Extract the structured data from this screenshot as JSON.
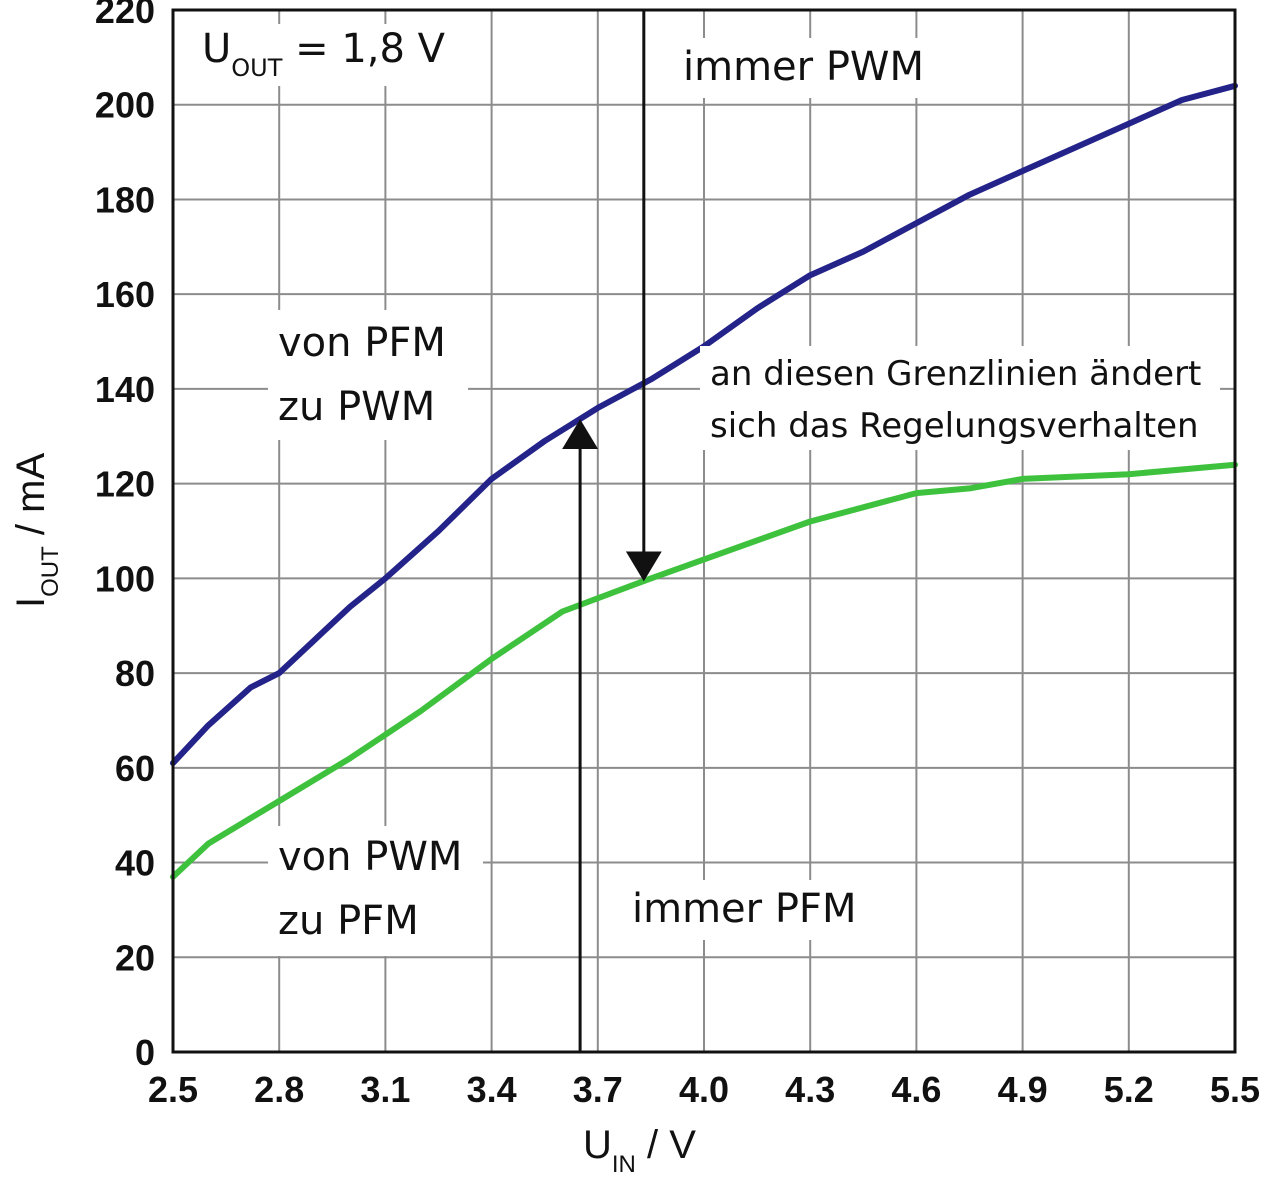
{
  "chart_data": {
    "type": "line",
    "xlim": [
      2.5,
      5.5
    ],
    "ylim": [
      0,
      220
    ],
    "x_ticks": [
      "2.5",
      "2.8",
      "3.1",
      "3.4",
      "3.7",
      "4.0",
      "4.3",
      "4.6",
      "4.9",
      "5.2",
      "5.5"
    ],
    "y_ticks": [
      "0",
      "20",
      "40",
      "60",
      "80",
      "100",
      "120",
      "140",
      "160",
      "180",
      "200",
      "220"
    ],
    "grid": true,
    "xlabel": {
      "main": "U",
      "sub": "IN",
      "unit": " / V"
    },
    "ylabel": {
      "main": "I",
      "sub": "OUT",
      "unit": " / mA"
    },
    "series": [
      {
        "color": "#23238a",
        "x": [
          2.5,
          2.6,
          2.72,
          2.8,
          2.9,
          3.0,
          3.1,
          3.25,
          3.4,
          3.55,
          3.7,
          3.85,
          4.0,
          4.15,
          4.3,
          4.45,
          4.6,
          4.75,
          4.9,
          5.05,
          5.2,
          5.35,
          5.5
        ],
        "y": [
          61,
          69,
          77,
          80,
          87,
          94,
          100,
          110,
          121,
          129,
          136,
          142,
          149,
          157,
          164,
          169,
          175,
          181,
          186,
          191,
          196,
          201,
          204
        ]
      },
      {
        "color": "#3ec23e",
        "x": [
          2.5,
          2.6,
          2.8,
          3.0,
          3.2,
          3.4,
          3.6,
          3.85,
          4.0,
          4.3,
          4.6,
          4.75,
          4.9,
          5.2,
          5.5
        ],
        "y": [
          37,
          44,
          53,
          62,
          72,
          83,
          93,
          100,
          104,
          112,
          118,
          119,
          121,
          122,
          124
        ]
      }
    ],
    "arrows": [
      {
        "direction": "down",
        "x": 3.83,
        "from_y": 220,
        "to_y": 100
      },
      {
        "direction": "up",
        "x": 3.65,
        "from_y": 0,
        "to_y": 133
      }
    ],
    "annotations": [
      {
        "id": "uout",
        "main": "U",
        "sub": "OUT",
        "rest": " = 1,8 V"
      },
      {
        "id": "immer-pwm",
        "lines": [
          "immer PWM"
        ]
      },
      {
        "id": "von-pfm",
        "lines": [
          "von PFM",
          "zu PWM"
        ]
      },
      {
        "id": "grenzlinien",
        "lines": [
          "an diesen Grenzlinien ändert",
          "sich das Regelungsverhalten"
        ]
      },
      {
        "id": "von-pwm",
        "lines": [
          "von PWM",
          "zu PFM"
        ]
      },
      {
        "id": "immer-pfm",
        "lines": [
          "immer PFM"
        ]
      }
    ]
  }
}
